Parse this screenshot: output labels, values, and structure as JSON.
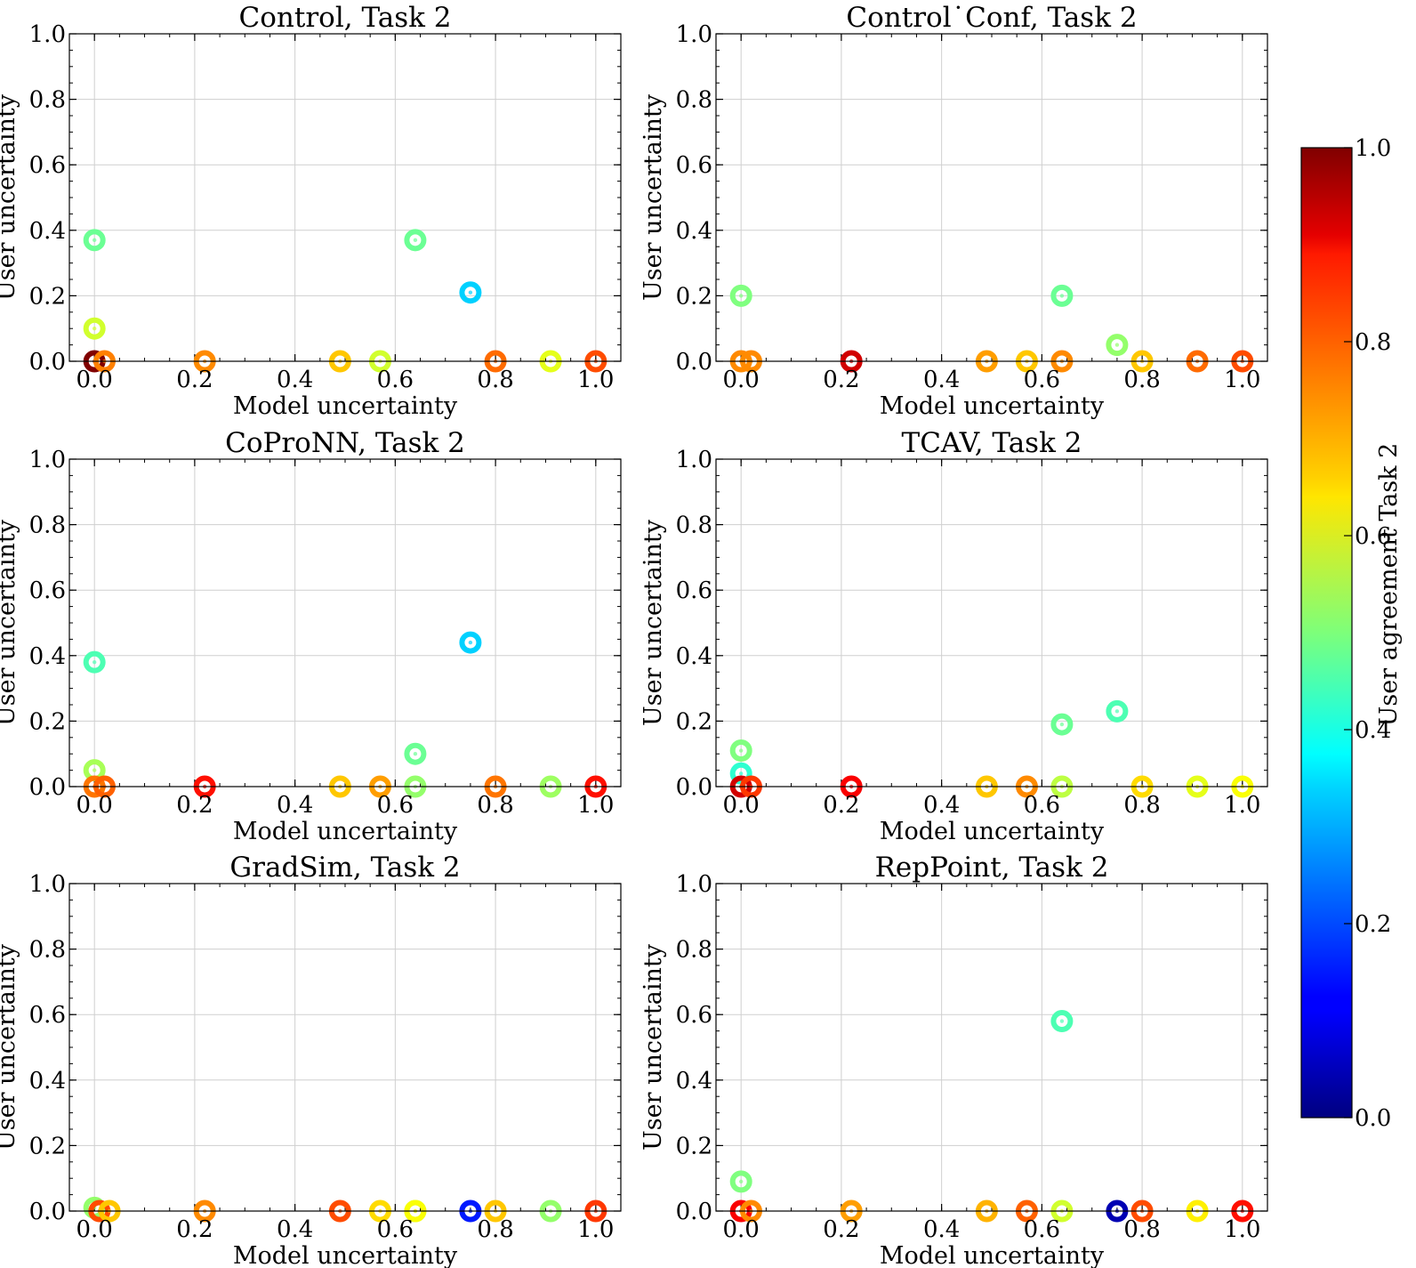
{
  "chart_data": {
    "type": "scatter",
    "xlabel": "Model uncertainty",
    "ylabel": "User uncertainty",
    "xlim": [
      -0.05,
      1.05
    ],
    "ylim": [
      0,
      1.0
    ],
    "x_ticks": [
      "0.0",
      "0.2",
      "0.4",
      "0.6",
      "0.8",
      "1.0"
    ],
    "y_ticks": [
      "0.0",
      "0.2",
      "0.4",
      "0.6",
      "0.8",
      "1.0"
    ],
    "grid": true,
    "marker": "ring",
    "colorbar": {
      "label": "User agreement Task 2",
      "colormap": "jet",
      "range": [
        0,
        1.0
      ],
      "ticks": [
        "0.0",
        "0.2",
        "0.4",
        "0.6",
        "0.8",
        "1.0"
      ]
    },
    "panels": [
      {
        "title": "Control, Task 2",
        "points": [
          {
            "x": 0.0,
            "y": 0.37,
            "c": 0.48
          },
          {
            "x": 0.0,
            "y": 0.1,
            "c": 0.58
          },
          {
            "x": 0.0,
            "y": 0.0,
            "c": 1.0
          },
          {
            "x": 0.02,
            "y": 0.0,
            "c": 0.75
          },
          {
            "x": 0.22,
            "y": 0.0,
            "c": 0.74
          },
          {
            "x": 0.49,
            "y": 0.0,
            "c": 0.68
          },
          {
            "x": 0.57,
            "y": 0.0,
            "c": 0.58
          },
          {
            "x": 0.64,
            "y": 0.37,
            "c": 0.48
          },
          {
            "x": 0.75,
            "y": 0.21,
            "c": 0.33
          },
          {
            "x": 0.8,
            "y": 0.0,
            "c": 0.77
          },
          {
            "x": 0.91,
            "y": 0.0,
            "c": 0.6
          },
          {
            "x": 1.0,
            "y": 0.0,
            "c": 0.8
          }
        ]
      },
      {
        "title": "Control˙Conf, Task 2",
        "points": [
          {
            "x": 0.0,
            "y": 0.2,
            "c": 0.5
          },
          {
            "x": 0.0,
            "y": 0.0,
            "c": 0.74
          },
          {
            "x": 0.02,
            "y": 0.0,
            "c": 0.74
          },
          {
            "x": 0.22,
            "y": 0.0,
            "c": 0.92
          },
          {
            "x": 0.49,
            "y": 0.0,
            "c": 0.72
          },
          {
            "x": 0.57,
            "y": 0.0,
            "c": 0.68
          },
          {
            "x": 0.64,
            "y": 0.0,
            "c": 0.74
          },
          {
            "x": 0.64,
            "y": 0.2,
            "c": 0.48
          },
          {
            "x": 0.75,
            "y": 0.05,
            "c": 0.52
          },
          {
            "x": 0.8,
            "y": 0.0,
            "c": 0.68
          },
          {
            "x": 0.91,
            "y": 0.0,
            "c": 0.77
          },
          {
            "x": 1.0,
            "y": 0.0,
            "c": 0.8
          }
        ]
      },
      {
        "title": "CoProNN, Task 2",
        "points": [
          {
            "x": 0.0,
            "y": 0.38,
            "c": 0.45
          },
          {
            "x": 0.0,
            "y": 0.05,
            "c": 0.54
          },
          {
            "x": 0.0,
            "y": 0.0,
            "c": 0.76
          },
          {
            "x": 0.02,
            "y": 0.0,
            "c": 0.78
          },
          {
            "x": 0.22,
            "y": 0.0,
            "c": 0.86
          },
          {
            "x": 0.49,
            "y": 0.0,
            "c": 0.68
          },
          {
            "x": 0.57,
            "y": 0.0,
            "c": 0.72
          },
          {
            "x": 0.64,
            "y": 0.1,
            "c": 0.48
          },
          {
            "x": 0.64,
            "y": 0.0,
            "c": 0.52
          },
          {
            "x": 0.75,
            "y": 0.44,
            "c": 0.33
          },
          {
            "x": 0.8,
            "y": 0.0,
            "c": 0.76
          },
          {
            "x": 0.91,
            "y": 0.0,
            "c": 0.53
          },
          {
            "x": 1.0,
            "y": 0.0,
            "c": 0.86
          }
        ]
      },
      {
        "title": "TCAV, Task 2",
        "points": [
          {
            "x": 0.0,
            "y": 0.11,
            "c": 0.5
          },
          {
            "x": 0.0,
            "y": 0.04,
            "c": 0.42
          },
          {
            "x": 0.0,
            "y": 0.0,
            "c": 0.92
          },
          {
            "x": 0.02,
            "y": 0.0,
            "c": 0.82
          },
          {
            "x": 0.22,
            "y": 0.0,
            "c": 0.88
          },
          {
            "x": 0.49,
            "y": 0.0,
            "c": 0.68
          },
          {
            "x": 0.57,
            "y": 0.0,
            "c": 0.74
          },
          {
            "x": 0.64,
            "y": 0.19,
            "c": 0.48
          },
          {
            "x": 0.64,
            "y": 0.0,
            "c": 0.56
          },
          {
            "x": 0.75,
            "y": 0.23,
            "c": 0.45
          },
          {
            "x": 0.8,
            "y": 0.0,
            "c": 0.66
          },
          {
            "x": 0.91,
            "y": 0.0,
            "c": 0.6
          },
          {
            "x": 1.0,
            "y": 0.0,
            "c": 0.62
          }
        ]
      },
      {
        "title": "GradSim, Task 2",
        "points": [
          {
            "x": 0.0,
            "y": 0.01,
            "c": 0.52
          },
          {
            "x": 0.01,
            "y": 0.0,
            "c": 0.8
          },
          {
            "x": 0.03,
            "y": 0.0,
            "c": 0.68
          },
          {
            "x": 0.22,
            "y": 0.0,
            "c": 0.74
          },
          {
            "x": 0.49,
            "y": 0.0,
            "c": 0.8
          },
          {
            "x": 0.57,
            "y": 0.0,
            "c": 0.66
          },
          {
            "x": 0.64,
            "y": 0.0,
            "c": 0.56
          },
          {
            "x": 0.64,
            "y": 0.0,
            "c": 0.62
          },
          {
            "x": 0.75,
            "y": 0.0,
            "c": 0.15
          },
          {
            "x": 0.8,
            "y": 0.0,
            "c": 0.68
          },
          {
            "x": 0.91,
            "y": 0.0,
            "c": 0.52
          },
          {
            "x": 1.0,
            "y": 0.0,
            "c": 0.82
          }
        ]
      },
      {
        "title": "RepPoint, Task 2",
        "points": [
          {
            "x": 0.0,
            "y": 0.09,
            "c": 0.5
          },
          {
            "x": 0.0,
            "y": 0.0,
            "c": 0.88
          },
          {
            "x": 0.02,
            "y": 0.0,
            "c": 0.74
          },
          {
            "x": 0.22,
            "y": 0.0,
            "c": 0.72
          },
          {
            "x": 0.49,
            "y": 0.0,
            "c": 0.7
          },
          {
            "x": 0.57,
            "y": 0.0,
            "c": 0.78
          },
          {
            "x": 0.64,
            "y": 0.58,
            "c": 0.45
          },
          {
            "x": 0.64,
            "y": 0.0,
            "c": 0.58
          },
          {
            "x": 0.75,
            "y": 0.0,
            "c": 0.05
          },
          {
            "x": 0.8,
            "y": 0.0,
            "c": 0.8
          },
          {
            "x": 0.91,
            "y": 0.0,
            "c": 0.64
          },
          {
            "x": 1.0,
            "y": 0.0,
            "c": 0.86
          }
        ]
      }
    ]
  }
}
